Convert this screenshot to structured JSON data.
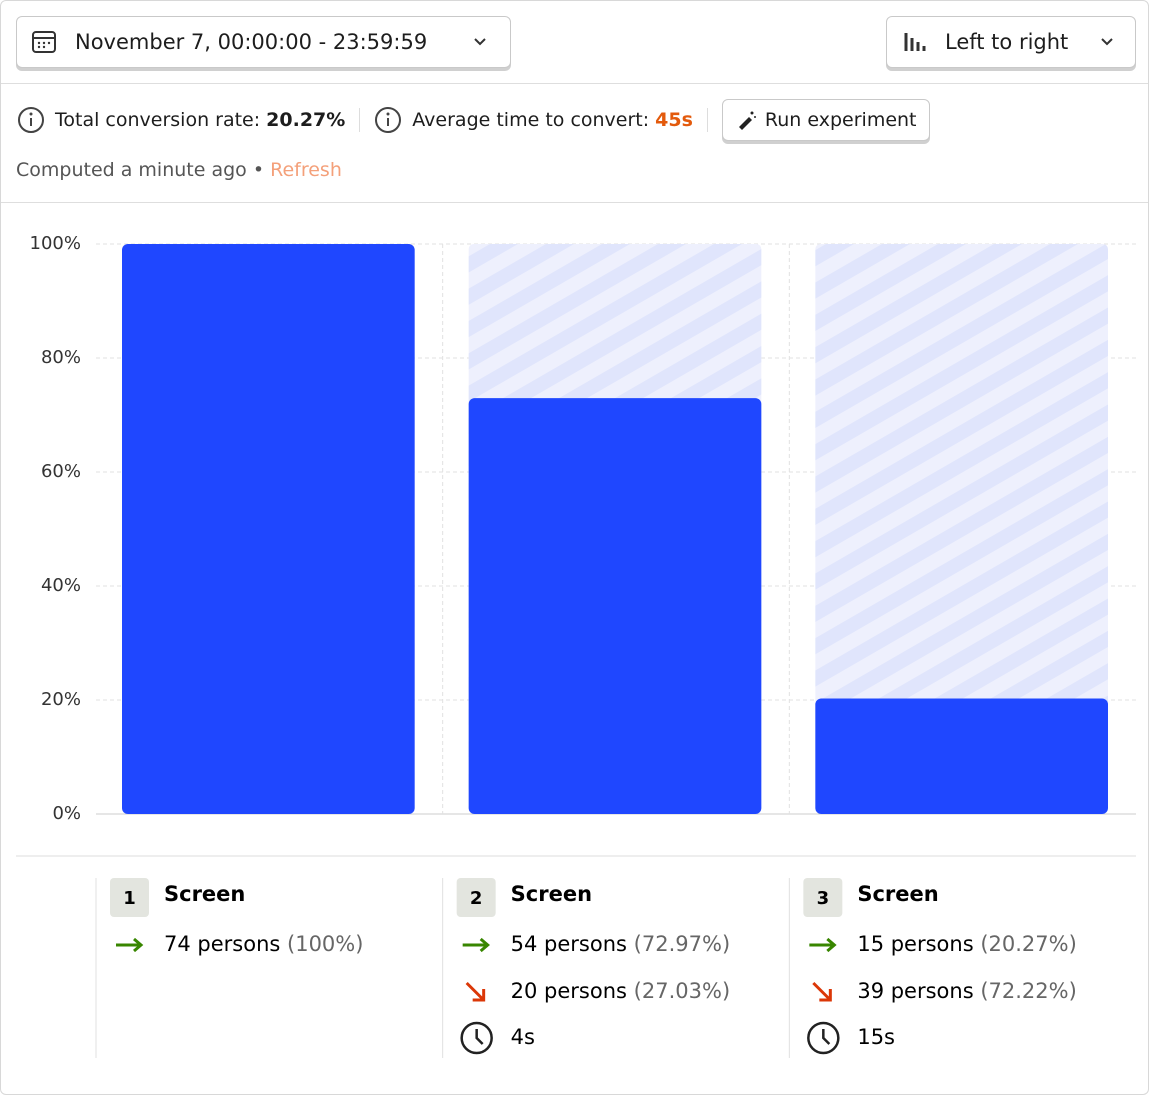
{
  "toolbar": {
    "date_range": "November 7, 00:00:00 - 23:59:59",
    "layout": "Left to right"
  },
  "summary": {
    "conversion_label": "Total conversion rate:",
    "conversion_value": "20.27%",
    "time_label": "Average time to convert:",
    "time_value": "45s",
    "action": "Run experiment",
    "computed": "Computed a minute ago",
    "separator": "•",
    "refresh": "Refresh"
  },
  "chart_data": {
    "type": "bar",
    "values": [
      100,
      72.97,
      20.27
    ],
    "color": "#1f47ff",
    "ylim": [
      0,
      100
    ],
    "yticks": [
      {
        "value": 0,
        "label": "0%"
      },
      {
        "value": 20,
        "label": "20%"
      },
      {
        "value": 40,
        "label": "40%"
      },
      {
        "value": 60,
        "label": "60%"
      },
      {
        "value": 80,
        "label": "80%"
      },
      {
        "value": 100,
        "label": "100%"
      }
    ],
    "grid": true
  },
  "steps": [
    {
      "number": "1",
      "name": "Screen",
      "converted": "74 persons",
      "converted_share": "(100%)"
    },
    {
      "number": "2",
      "name": "Screen",
      "converted": "54 persons",
      "converted_share": "(72.97%)",
      "dropped": "20 persons",
      "dropped_share": "(27.03%)",
      "time": "4s"
    },
    {
      "number": "3",
      "name": "Screen",
      "converted": "15 persons",
      "converted_share": "(20.27%)",
      "dropped": "39 persons",
      "dropped_share": "(72.22%)",
      "time": "15s"
    }
  ]
}
